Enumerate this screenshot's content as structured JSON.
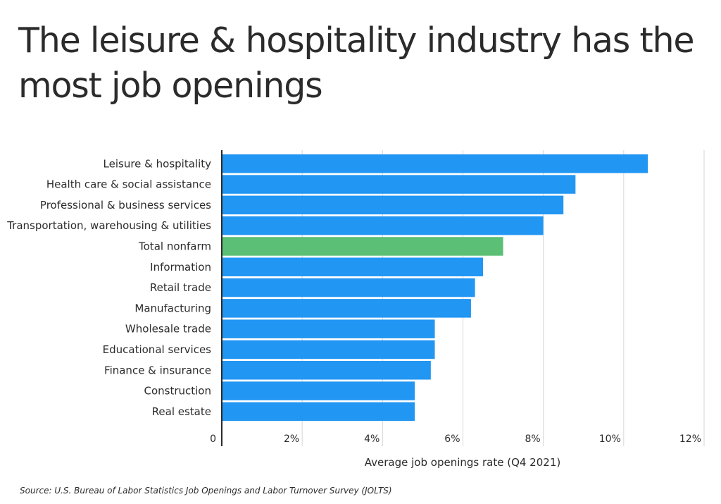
{
  "chart_data": {
    "type": "bar",
    "orientation": "horizontal",
    "title": "The leisure & hospitality industry has the most job openings",
    "xlabel": "Average job openings rate (Q4 2021)",
    "ylabel": "",
    "xlim": [
      0,
      12
    ],
    "x_ticks": [
      {
        "value": 0,
        "label": "0"
      },
      {
        "value": 2,
        "label": "2%"
      },
      {
        "value": 4,
        "label": "4%"
      },
      {
        "value": 6,
        "label": "6%"
      },
      {
        "value": 8,
        "label": "8%"
      },
      {
        "value": 10,
        "label": "10%"
      },
      {
        "value": 12,
        "label": "12%"
      }
    ],
    "grid": "vertical",
    "colors": {
      "default": "#2196f3",
      "highlight": "#5bbf75",
      "grid": "#d6d6d6",
      "axis": "#2b2b2b"
    },
    "highlight_category": "Total nonfarm",
    "categories": [
      "Leisure & hospitality",
      "Health care & social assistance",
      "Professional & business services",
      "Transportation, warehousing & utilities",
      "Total nonfarm",
      "Information",
      "Retail trade",
      "Manufacturing",
      "Wholesale trade",
      "Educational services",
      "Finance & insurance",
      "Construction",
      "Real estate"
    ],
    "values": [
      10.6,
      8.8,
      8.5,
      8.0,
      7.0,
      6.5,
      6.3,
      6.2,
      5.3,
      5.3,
      5.2,
      4.8,
      4.8
    ],
    "source": "Source:  U.S. Bureau of Labor Statistics Job Openings and Labor Turnover Survey (JOLTS)"
  }
}
